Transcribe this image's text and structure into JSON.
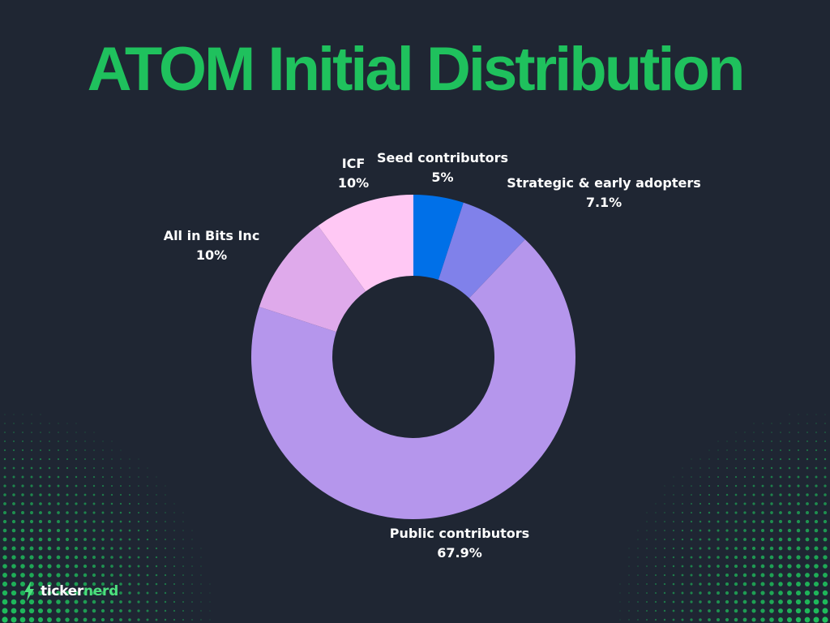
{
  "title": "ATOM Initial Distribution",
  "brand": {
    "name_part1": "ticker",
    "name_part2": "nerd",
    "icon": "lightning-bolt-icon"
  },
  "colors": {
    "background": "#1f2633",
    "title": "#1fc15d",
    "brand_accent": "#4de07e"
  },
  "chart_data": {
    "type": "pie",
    "donut": true,
    "title": "ATOM Initial Distribution",
    "slices": [
      {
        "label": "Seed contributors",
        "value_label": "5%",
        "value": 5,
        "color": "#0070e8"
      },
      {
        "label": "Strategic & early adopters",
        "value_label": "7.1%",
        "value": 7.1,
        "color": "#8081ea"
      },
      {
        "label": "Public contributors",
        "value_label": "67.9%",
        "value": 67.9,
        "color": "#b596ec"
      },
      {
        "label": "All in Bits Inc",
        "value_label": "10%",
        "value": 10,
        "color": "#dfaaeb"
      },
      {
        "label": "ICF",
        "value_label": "10%",
        "value": 10,
        "color": "#ffc8f4"
      }
    ]
  }
}
